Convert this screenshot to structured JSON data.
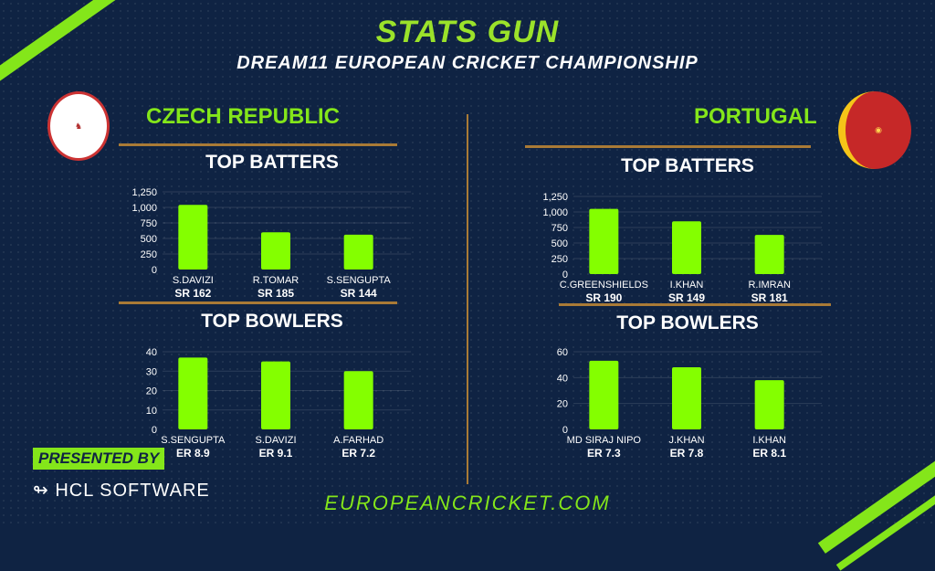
{
  "header": {
    "title": "STATS GUN",
    "subtitle": "DREAM11 EUROPEAN CRICKET CHAMPIONSHIP"
  },
  "colors": {
    "accent": "#84e61a",
    "bar": "#84ff00",
    "rule": "#a97a36",
    "background": "#0f2343"
  },
  "left_team": {
    "name": "CZECH REPUBLIC"
  },
  "right_team": {
    "name": "PORTUGAL"
  },
  "sections": {
    "batters": "TOP BATTERS",
    "bowlers": "TOP BOWLERS"
  },
  "footer": {
    "presented_by": "PRESENTED BY",
    "sponsor": "HCL SOFTWARE",
    "website": "EUROPEANCRICKET.COM"
  },
  "chart_data": [
    {
      "type": "bar",
      "title": "TOP BATTERS",
      "team": "CZECH REPUBLIC",
      "categories": [
        "S.DAVIZI",
        "R.TOMAR",
        "S.SENGUPTA"
      ],
      "sublabels": [
        "SR 162",
        "SR 185",
        "SR 144"
      ],
      "values": [
        1040,
        600,
        560
      ],
      "ylim": [
        0,
        1250
      ],
      "ticks": [
        "0",
        "250",
        "500",
        "750",
        "1,000",
        "1,250"
      ]
    },
    {
      "type": "bar",
      "title": "TOP BOWLERS",
      "team": "CZECH REPUBLIC",
      "categories": [
        "S.SENGUPTA",
        "S.DAVIZI",
        "A.FARHAD"
      ],
      "sublabels": [
        "ER 8.9",
        "ER 9.1",
        "ER 7.2"
      ],
      "values": [
        37,
        35,
        30
      ],
      "ylim": [
        0,
        40
      ],
      "ticks": [
        "0",
        "10",
        "20",
        "30",
        "40"
      ]
    },
    {
      "type": "bar",
      "title": "TOP BATTERS",
      "team": "PORTUGAL",
      "categories": [
        "C.GREENSHIELDS",
        "I.KHAN",
        "R.IMRAN"
      ],
      "sublabels": [
        "SR 190",
        "SR 149",
        "SR 181"
      ],
      "values": [
        1050,
        850,
        630
      ],
      "ylim": [
        0,
        1250
      ],
      "ticks": [
        "0",
        "250",
        "500",
        "750",
        "1,000",
        "1,250"
      ]
    },
    {
      "type": "bar",
      "title": "TOP BOWLERS",
      "team": "PORTUGAL",
      "categories": [
        "MD SIRAJ NIPO",
        "J.KHAN",
        "I.KHAN"
      ],
      "sublabels": [
        "ER 7.3",
        "ER 7.8",
        "ER 8.1"
      ],
      "values": [
        53,
        48,
        38
      ],
      "ylim": [
        0,
        60
      ],
      "ticks": [
        "0",
        "20",
        "40",
        "60"
      ]
    }
  ]
}
